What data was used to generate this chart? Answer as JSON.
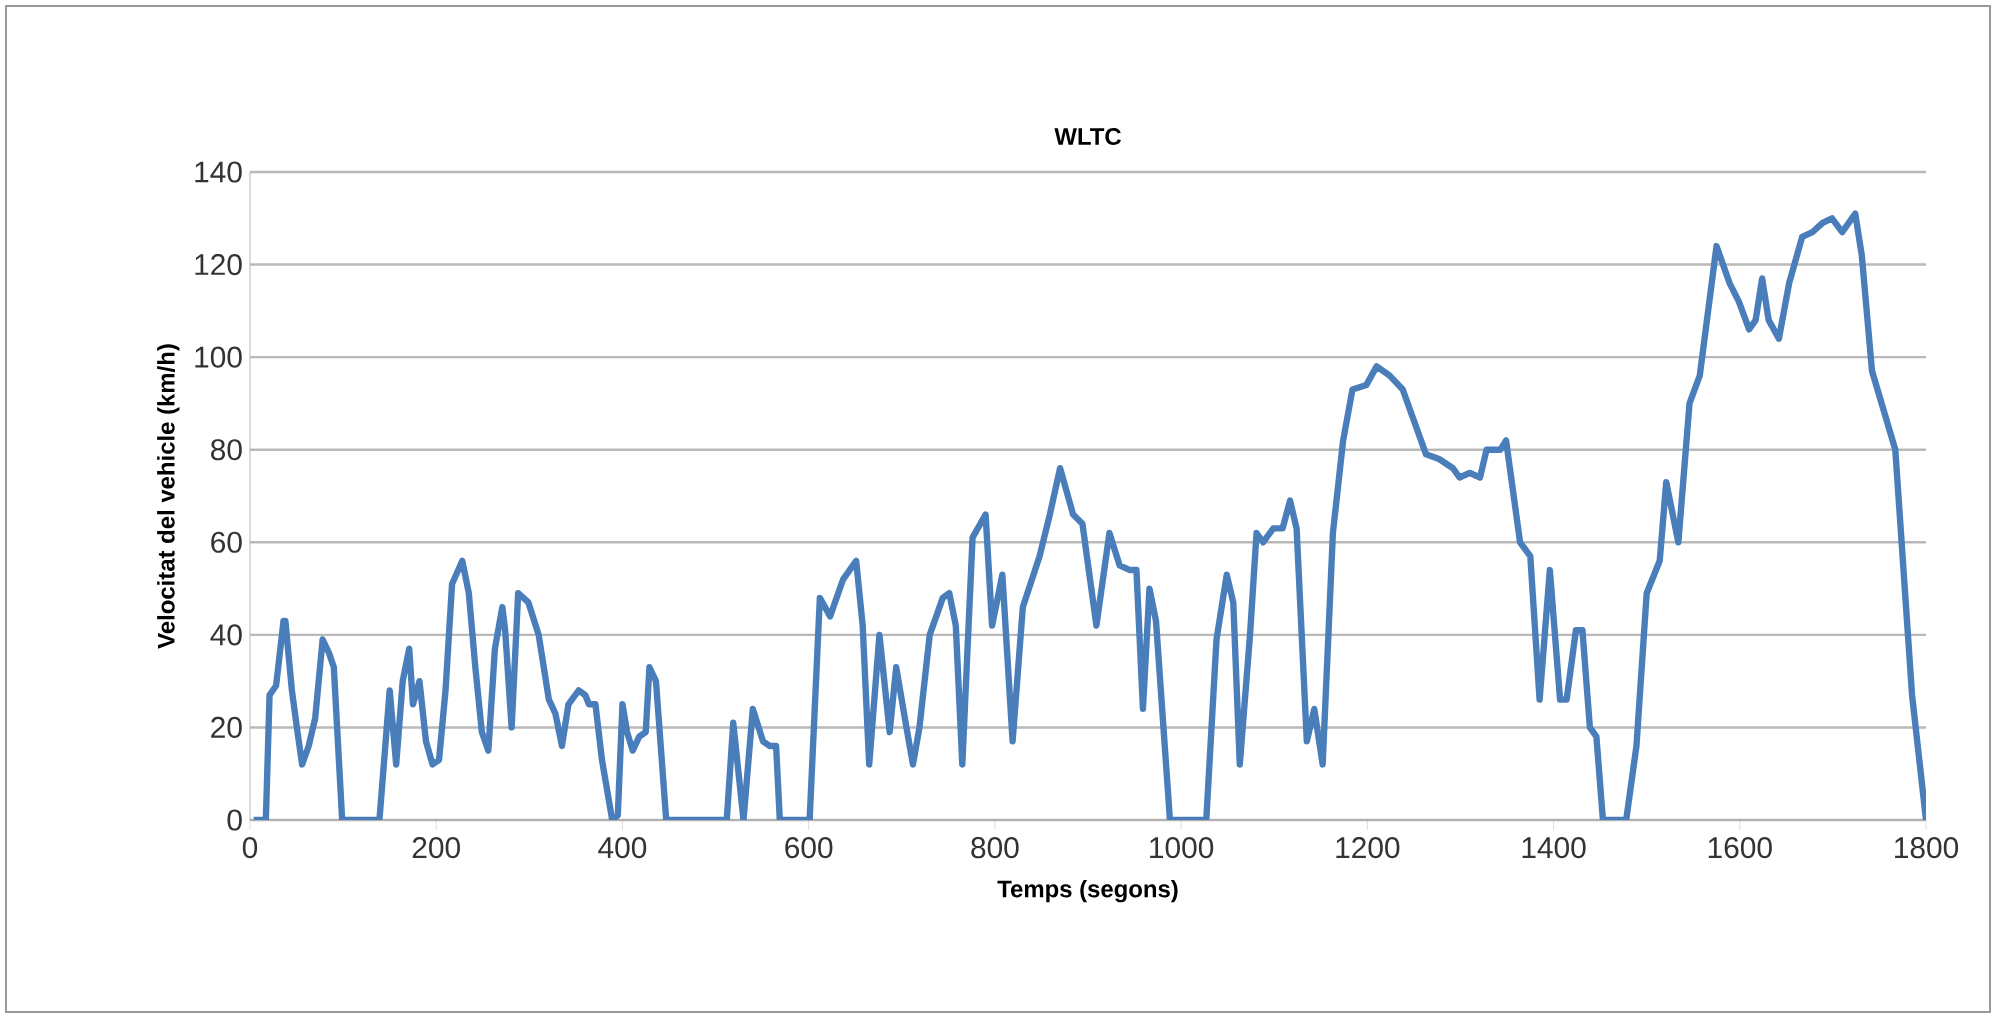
{
  "chart_data": {
    "type": "line",
    "title": "WLTC",
    "xlabel": "Temps (segons)",
    "ylabel": "Velocitat del vehicle (km/h)",
    "xlim": [
      0,
      1800
    ],
    "xticks": [
      0,
      200,
      400,
      600,
      800,
      1000,
      1200,
      1400,
      1600,
      1800
    ],
    "ylim": [
      0,
      140
    ],
    "yticks": [
      0,
      20,
      40,
      60,
      80,
      100,
      120,
      140
    ],
    "grid": "y",
    "marker": "none",
    "line_style": "solid",
    "series": [
      {
        "color": "#4a7ebb",
        "x": [
          4,
          17,
          21,
          28,
          36,
          38,
          45,
          51,
          56,
          63,
          70,
          78,
          85,
          90,
          99,
          139,
          150,
          157,
          164,
          171,
          175,
          182,
          189,
          196,
          203,
          210,
          217,
          228,
          235,
          242,
          249,
          256,
          263,
          271,
          274,
          281,
          288,
          299,
          310,
          321,
          328,
          335,
          342,
          353,
          360,
          364,
          371,
          378,
          389,
          395,
          400,
          405,
          411,
          418,
          425,
          429,
          436,
          447,
          512,
          519,
          530,
          540,
          551,
          558,
          565,
          569,
          601,
          612,
          623,
          637,
          651,
          658,
          665,
          676,
          687,
          694,
          705,
          712,
          719,
          730,
          744,
          751,
          758,
          765,
          776,
          790,
          797,
          808,
          819,
          830,
          848,
          859,
          870,
          877,
          884,
          894,
          909,
          923,
          934,
          945,
          952,
          959,
          966,
          973,
          988,
          1027,
          1038,
          1049,
          1056,
          1063,
          1074,
          1081,
          1088,
          1099,
          1109,
          1117,
          1124,
          1135,
          1143,
          1152,
          1163,
          1174,
          1184,
          1199,
          1210,
          1224,
          1238,
          1263,
          1277,
          1292,
          1299,
          1310,
          1321,
          1328,
          1343,
          1349,
          1364,
          1375,
          1385,
          1396,
          1407,
          1414,
          1424,
          1431,
          1439,
          1446,
          1453,
          1478,
          1489,
          1500,
          1514,
          1521,
          1534,
          1546,
          1557,
          1575,
          1589,
          1599,
          1610,
          1617,
          1624,
          1631,
          1642,
          1653,
          1667,
          1678,
          1689,
          1699,
          1710,
          1724,
          1731,
          1742,
          1767,
          1785,
          1800
        ],
        "values": [
          0,
          0,
          27,
          29,
          43,
          43,
          28,
          19,
          12,
          16,
          22,
          39,
          36,
          33,
          0,
          0,
          28,
          12,
          30,
          37,
          25,
          30,
          17,
          12,
          13,
          28,
          51,
          56,
          49,
          33,
          19,
          15,
          37,
          46,
          41,
          20,
          49,
          47,
          40,
          26,
          23,
          16,
          25,
          28,
          27,
          25,
          25,
          13,
          0,
          1,
          25,
          19,
          15,
          18,
          19,
          33,
          30,
          0,
          0,
          21,
          0,
          24,
          17,
          16,
          16,
          0,
          0,
          48,
          44,
          52,
          56,
          42,
          12,
          40,
          19,
          33,
          20,
          12,
          20,
          40,
          48,
          49,
          42,
          12,
          61,
          66,
          42,
          53,
          17,
          46,
          57,
          66,
          76,
          71,
          66,
          64,
          42,
          62,
          55,
          54,
          54,
          24,
          50,
          43,
          0,
          0,
          39,
          53,
          47,
          12,
          40,
          62,
          60,
          63,
          63,
          69,
          63,
          17,
          24,
          12,
          62,
          82,
          93,
          94,
          98,
          96,
          93,
          79,
          78,
          76,
          74,
          75,
          74,
          80,
          80,
          82,
          60,
          57,
          26,
          54,
          26,
          26,
          41,
          41,
          20,
          18,
          0,
          0,
          16,
          49,
          56,
          73,
          60,
          90,
          96,
          124,
          116,
          112,
          106,
          108,
          117,
          108,
          104,
          116,
          126,
          127,
          129,
          130,
          127,
          131,
          122,
          97,
          80,
          27,
          0
        ]
      }
    ]
  }
}
